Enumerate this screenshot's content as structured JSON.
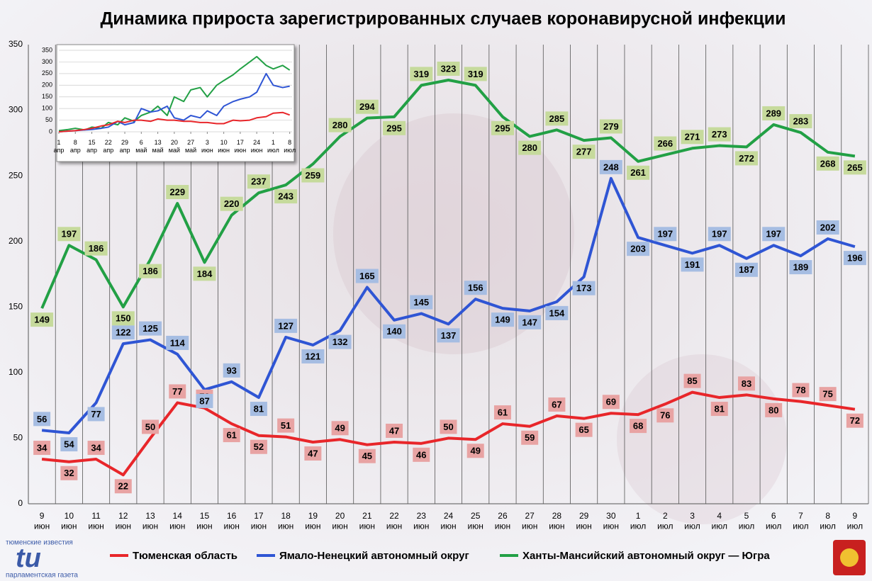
{
  "chart_data": [
    {
      "type": "line",
      "title": "Динамика прироста зарегистрированных случаев коронавирусной инфекции",
      "categories": [
        "9 июн",
        "10 июн",
        "11 июн",
        "12 июн",
        "13 июн",
        "14 июн",
        "15 июн",
        "16 июн",
        "17 июн",
        "18 июн",
        "19 июн",
        "20 июн",
        "21 июн",
        "22 июн",
        "23 июн",
        "24 июн",
        "25 июн",
        "26 июн",
        "27 июн",
        "28 июн",
        "29 июн",
        "30 июн",
        "1 июл",
        "2 июл",
        "3 июл",
        "4 июл",
        "5 июл",
        "6 июл",
        "7 июл",
        "8 июл",
        "9 июл"
      ],
      "series": [
        {
          "name": "Тюменская область",
          "color": "#e8262a",
          "label_color": "#e8a3a3",
          "values": [
            34,
            32,
            34,
            22,
            50,
            77,
            73,
            61,
            52,
            51,
            47,
            49,
            45,
            47,
            46,
            50,
            49,
            61,
            59,
            67,
            65,
            69,
            68,
            76,
            85,
            81,
            83,
            80,
            78,
            75,
            72
          ]
        },
        {
          "name": "Ямало-Ненецкий автономный округ",
          "color": "#2f55d4",
          "label_color": "#a6bde2",
          "values": [
            56,
            54,
            77,
            122,
            125,
            114,
            87,
            93,
            81,
            127,
            121,
            132,
            165,
            140,
            145,
            137,
            156,
            149,
            147,
            154,
            173,
            248,
            203,
            197,
            191,
            197,
            187,
            197,
            189,
            202,
            196
          ]
        },
        {
          "name": "Ханты-Мансийский автономный округ — Югра",
          "color": "#22a045",
          "label_color": "#c6da9c",
          "values": [
            149,
            197,
            186,
            150,
            186,
            229,
            184,
            220,
            237,
            243,
            259,
            280,
            294,
            295,
            319,
            323,
            319,
            295,
            280,
            285,
            277,
            279,
            261,
            266,
            271,
            273,
            272,
            289,
            283,
            268,
            265
          ]
        }
      ],
      "ylim": [
        0,
        350
      ],
      "yticks": [
        0,
        50,
        100,
        150,
        200,
        250,
        300,
        350
      ],
      "grid": true,
      "legend": "bottom"
    },
    {
      "type": "line",
      "x": [
        0,
        4,
        7,
        11,
        14,
        18,
        21,
        25,
        28,
        32,
        35,
        39,
        42,
        46,
        49,
        53,
        56,
        60,
        63,
        67,
        70,
        74,
        77,
        81,
        84,
        88,
        91,
        95,
        98
      ],
      "series": [
        {
          "color": "#22a045",
          "values": [
            5,
            10,
            15,
            8,
            20,
            15,
            40,
            30,
            60,
            45,
            70,
            85,
            110,
            70,
            150,
            130,
            180,
            190,
            150,
            200,
            220,
            245,
            270,
            300,
            323,
            285,
            270,
            285,
            265
          ]
        },
        {
          "color": "#2f55d4",
          "values": [
            0,
            3,
            5,
            8,
            10,
            15,
            20,
            45,
            30,
            40,
            100,
            85,
            90,
            110,
            60,
            50,
            70,
            60,
            90,
            70,
            110,
            130,
            140,
            150,
            170,
            250,
            200,
            190,
            196
          ]
        },
        {
          "color": "#e8262a",
          "values": [
            0,
            3,
            5,
            10,
            15,
            25,
            30,
            45,
            40,
            50,
            50,
            45,
            55,
            50,
            50,
            45,
            45,
            40,
            40,
            35,
            35,
            50,
            47,
            50,
            60,
            65,
            80,
            83,
            72
          ]
        }
      ],
      "xlim": [
        0,
        99
      ],
      "xticks": [
        {
          "value": 0,
          "label": "1 апр"
        },
        {
          "value": 7,
          "label": "8 апр"
        },
        {
          "value": 14,
          "label": "15 апр"
        },
        {
          "value": 21,
          "label": "22 апр"
        },
        {
          "value": 28,
          "label": "29 апр"
        },
        {
          "value": 35,
          "label": "6 май"
        },
        {
          "value": 42,
          "label": "13 май"
        },
        {
          "value": 49,
          "label": "20 май"
        },
        {
          "value": 56,
          "label": "27 май"
        },
        {
          "value": 63,
          "label": "3 июн"
        },
        {
          "value": 70,
          "label": "10 июн"
        },
        {
          "value": 77,
          "label": "17 июн"
        },
        {
          "value": 84,
          "label": "24 июн"
        },
        {
          "value": 91,
          "label": "1 июл"
        },
        {
          "value": 98,
          "label": "8 июл"
        }
      ],
      "ylim": [
        0,
        350
      ],
      "yticks": [
        0,
        50,
        100,
        150,
        200,
        250,
        300,
        350
      ],
      "grid": true
    }
  ],
  "logo": {
    "top": "тюменские известия",
    "mark": "tu",
    "bottom": "парламентская газета"
  }
}
